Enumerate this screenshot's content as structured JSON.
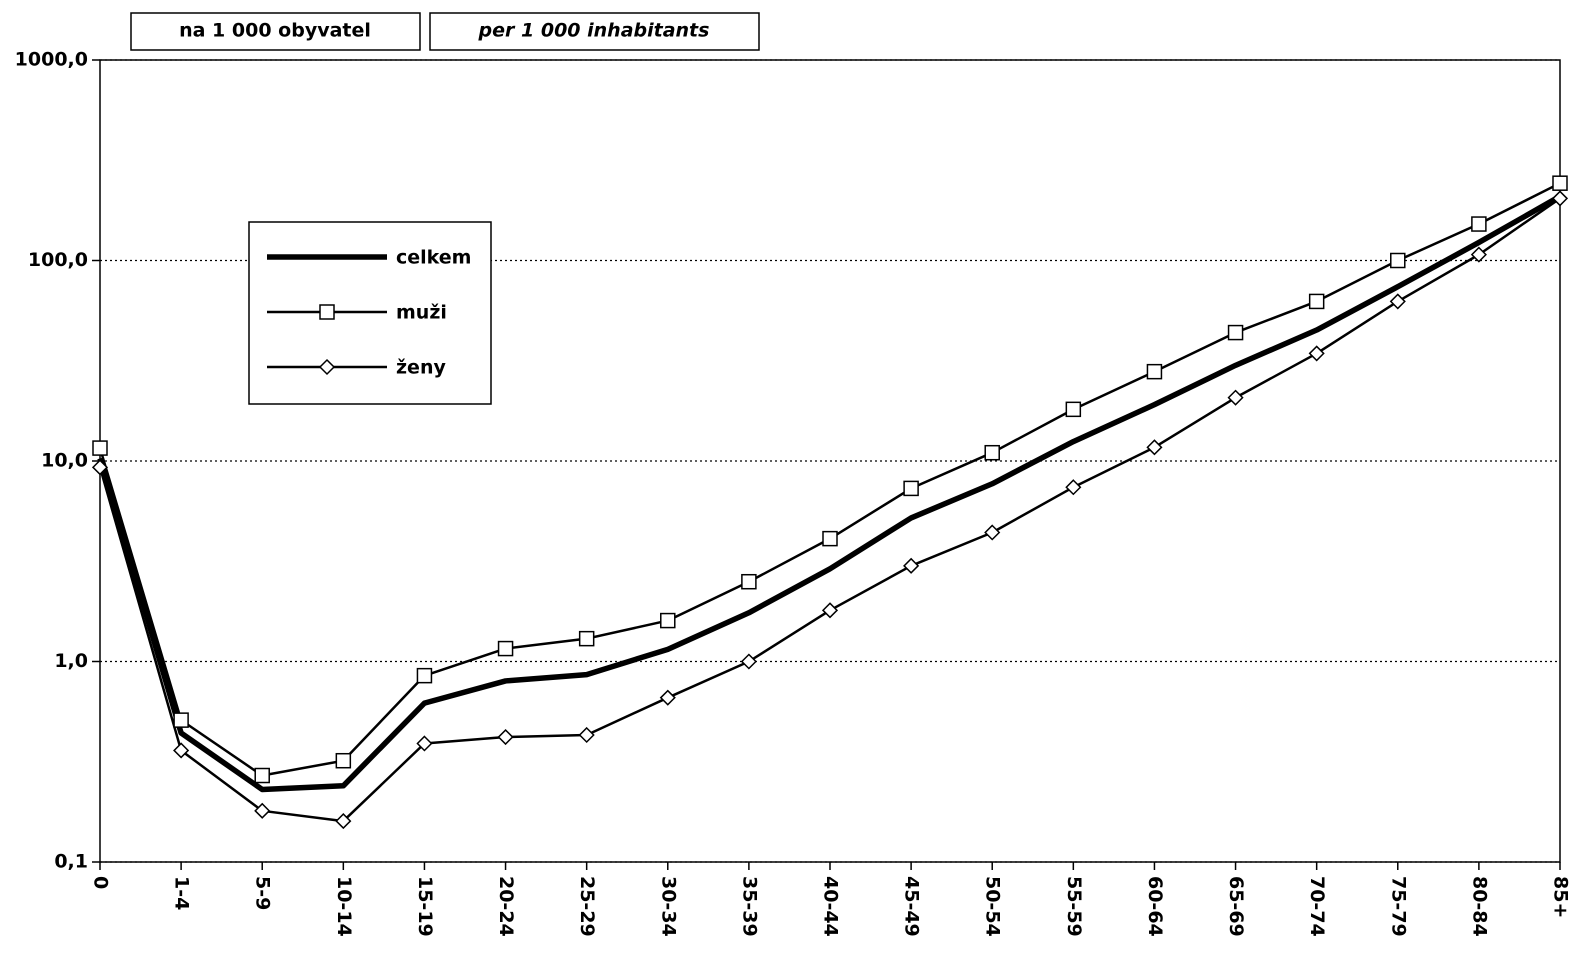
{
  "chart_data": {
    "type": "line",
    "annotations": [
      "na 1 000 obyvatel",
      "per 1 000 inhabitants"
    ],
    "categories": [
      "0",
      "1-4",
      "5-9",
      "10-14",
      "15-19",
      "20-24",
      "25-29",
      "30-34",
      "35-39",
      "40-44",
      "45-49",
      "50-54",
      "55-59",
      "60-64",
      "65-69",
      "70-74",
      "75-79",
      "80-84",
      "85+"
    ],
    "series": [
      {
        "name": "celkem",
        "color": "#000000",
        "values": [
          10.3,
          0.44,
          0.23,
          0.24,
          0.62,
          0.8,
          0.86,
          1.15,
          1.75,
          2.9,
          5.2,
          7.7,
          12.5,
          19.1,
          30,
          45,
          74,
          123,
          209
        ]
      },
      {
        "name": "muži",
        "color": "#000000",
        "marker": "square",
        "values": [
          11.6,
          0.51,
          0.27,
          0.32,
          0.85,
          1.16,
          1.3,
          1.6,
          2.5,
          4.1,
          7.3,
          11.0,
          18.1,
          27.9,
          43.7,
          62.5,
          100,
          152,
          243
        ]
      },
      {
        "name": "ženy",
        "color": "#000000",
        "marker": "diamond",
        "values": [
          9.3,
          0.36,
          0.18,
          0.16,
          0.39,
          0.42,
          0.43,
          0.66,
          1.0,
          1.8,
          3.0,
          4.4,
          7.4,
          11.7,
          20.7,
          34.4,
          62.5,
          107,
          204
        ]
      }
    ],
    "ylim": [
      0.1,
      1000
    ],
    "yticks": [
      {
        "value": 0.1,
        "label": "0,1"
      },
      {
        "value": 1,
        "label": "1,0"
      },
      {
        "value": 10,
        "label": "10,0"
      },
      {
        "value": 100,
        "label": "100,0"
      },
      {
        "value": 1000,
        "label": "1000,0"
      }
    ],
    "log_y": true,
    "grid": true,
    "legend": "upper left"
  }
}
